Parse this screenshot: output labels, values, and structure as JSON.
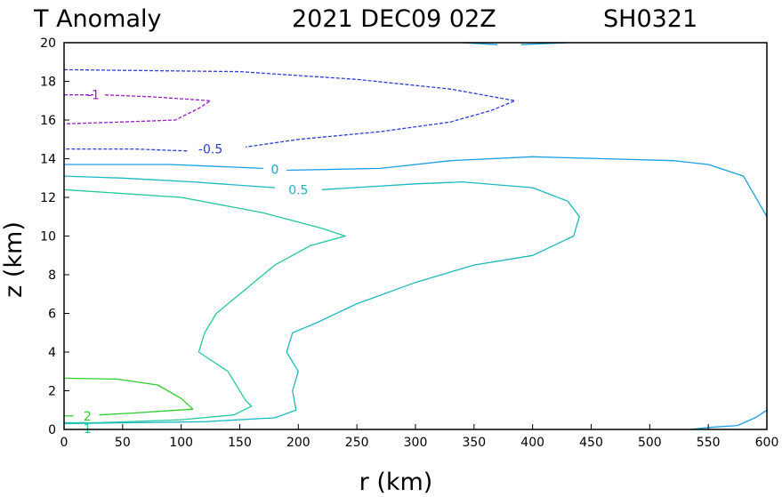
{
  "title": {
    "left": "T Anomaly",
    "date": "2021 DEC09 02Z",
    "storm": "SH0321"
  },
  "chart_data": {
    "type": "contour",
    "xlabel": "r (km)",
    "ylabel": "z (km)",
    "xlim": [
      0,
      600
    ],
    "ylim": [
      0,
      20
    ],
    "xticks": [
      0,
      50,
      100,
      150,
      200,
      250,
      300,
      350,
      400,
      450,
      500,
      550,
      600
    ],
    "yticks": [
      0,
      2,
      4,
      6,
      8,
      10,
      12,
      14,
      16,
      18,
      20
    ],
    "grid": false,
    "contours": [
      {
        "level": -1,
        "label": "-1",
        "color": "#9a1fc8",
        "dashed": true,
        "label_at": [
          25,
          17.3
        ],
        "lines": [
          [
            [
              0,
              17.3
            ],
            [
              25,
              17.3
            ]
          ],
          [
            [
              35,
              17.3
            ],
            [
              75,
              17.2
            ],
            [
              100,
              17.1
            ],
            [
              125,
              17.0
            ],
            [
              115,
              16.6
            ],
            [
              95,
              16.0
            ],
            [
              50,
              15.9
            ],
            [
              0,
              15.8
            ]
          ]
        ]
      },
      {
        "level": -0.5,
        "label": "-0.5",
        "color": "#2b3fd6",
        "dashed": true,
        "label_at": [
          125,
          14.5
        ],
        "lines": [
          [
            [
              0,
              18.6
            ],
            [
              150,
              18.5
            ],
            [
              250,
              18.1
            ],
            [
              330,
              17.6
            ],
            [
              385,
              17.0
            ],
            [
              365,
              16.5
            ],
            [
              330,
              15.9
            ],
            [
              270,
              15.4
            ],
            [
              200,
              15.0
            ],
            [
              155,
              14.6
            ]
          ],
          [
            [
              105,
              14.4
            ],
            [
              60,
              14.5
            ],
            [
              0,
              14.5
            ]
          ]
        ]
      },
      {
        "level": 0,
        "label": "0",
        "color": "#1a9fe0",
        "dashed": false,
        "label_at": [
          180,
          13.45
        ],
        "lines": [
          [
            [
              0,
              13.7
            ],
            [
              90,
              13.7
            ],
            [
              170,
              13.5
            ]
          ],
          [
            [
              190,
              13.4
            ],
            [
              270,
              13.5
            ],
            [
              330,
              13.9
            ],
            [
              400,
              14.1
            ],
            [
              460,
              14.0
            ],
            [
              520,
              13.9
            ],
            [
              550,
              13.7
            ],
            [
              580,
              13.1
            ],
            [
              600,
              11.0
            ]
          ],
          [
            [
              340,
              20.0
            ],
            [
              370,
              19.9
            ]
          ],
          [
            [
              390,
              19.9
            ],
            [
              430,
              20.0
            ]
          ],
          [
            [
              535,
              0.0
            ],
            [
              550,
              0.1
            ],
            [
              575,
              0.2
            ],
            [
              590,
              0.6
            ],
            [
              600,
              1.0
            ]
          ]
        ]
      },
      {
        "level": 0.5,
        "label": "0.5",
        "color": "#1cb8c0",
        "dashed": false,
        "label_at": [
          200,
          12.4
        ],
        "lines": [
          [
            [
              0,
              13.1
            ],
            [
              50,
              13.0
            ],
            [
              110,
              12.8
            ],
            [
              180,
              12.5
            ]
          ],
          [
            [
              220,
              12.4
            ],
            [
              300,
              12.7
            ],
            [
              340,
              12.8
            ],
            [
              400,
              12.5
            ],
            [
              430,
              11.8
            ],
            [
              440,
              11.0
            ],
            [
              435,
              10.0
            ],
            [
              400,
              9.0
            ],
            [
              350,
              8.5
            ],
            [
              300,
              7.6
            ],
            [
              250,
              6.5
            ],
            [
              215,
              5.5
            ],
            [
              195,
              5.0
            ],
            [
              190,
              4.0
            ],
            [
              200,
              3.0
            ],
            [
              195,
              2.0
            ],
            [
              198,
              1.0
            ],
            [
              180,
              0.6
            ],
            [
              120,
              0.4
            ],
            [
              0,
              0.3
            ]
          ]
        ]
      },
      {
        "level": 1,
        "label": "1",
        "color": "#22c7a0",
        "dashed": false,
        "label_at": [
          20,
          0.05
        ],
        "lines": [
          [
            [
              0,
              12.4
            ],
            [
              100,
              12.0
            ],
            [
              170,
              11.2
            ],
            [
              220,
              10.4
            ],
            [
              240,
              10.0
            ],
            [
              210,
              9.5
            ],
            [
              180,
              8.5
            ],
            [
              150,
              7.0
            ],
            [
              130,
              6.0
            ],
            [
              120,
              5.0
            ],
            [
              115,
              4.0
            ],
            [
              140,
              3.0
            ],
            [
              155,
              1.5
            ],
            [
              160,
              1.2
            ],
            [
              145,
              0.75
            ],
            [
              100,
              0.5
            ],
            [
              30,
              0.35
            ],
            [
              0,
              0.35
            ]
          ]
        ]
      },
      {
        "level": 2,
        "label": "2",
        "color": "#2fcc2f",
        "dashed": false,
        "label_at": [
          20,
          0.7
        ],
        "lines": [
          [
            [
              0,
              2.65
            ],
            [
              45,
              2.6
            ],
            [
              80,
              2.3
            ],
            [
              100,
              1.6
            ],
            [
              110,
              1.05
            ],
            [
              60,
              0.85
            ],
            [
              30,
              0.75
            ]
          ],
          [
            [
              8,
              0.7
            ],
            [
              0,
              0.7
            ]
          ]
        ]
      }
    ]
  }
}
